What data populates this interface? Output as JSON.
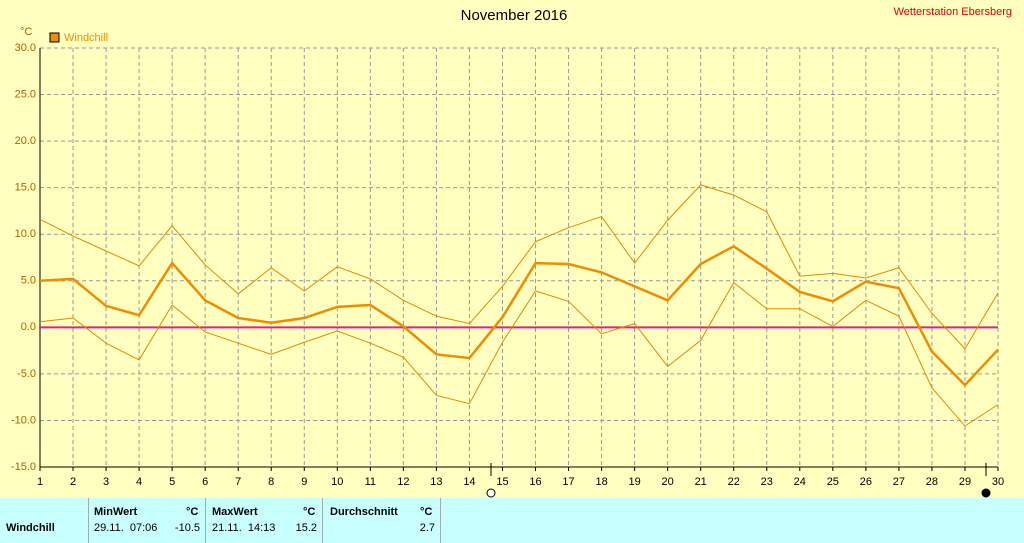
{
  "chart_data": {
    "type": "line",
    "title": "November 2016",
    "station": "Wetterstation Ebersberg",
    "y_unit": "°C",
    "x": [
      1,
      2,
      3,
      4,
      5,
      6,
      7,
      8,
      9,
      10,
      11,
      12,
      13,
      14,
      15,
      16,
      17,
      18,
      19,
      20,
      21,
      22,
      23,
      24,
      25,
      26,
      27,
      28,
      29,
      30
    ],
    "xlim": [
      1,
      30
    ],
    "xticks": [
      1,
      2,
      3,
      4,
      5,
      6,
      7,
      8,
      9,
      10,
      11,
      12,
      13,
      14,
      15,
      16,
      17,
      18,
      19,
      20,
      21,
      22,
      23,
      24,
      25,
      26,
      27,
      28,
      29,
      30
    ],
    "ylim": [
      -15,
      30
    ],
    "yticks": [
      {
        "value": -15,
        "label": "-15.0"
      },
      {
        "value": -10,
        "label": "-10.0"
      },
      {
        "value": -5,
        "label": "-5.0"
      },
      {
        "value": 0,
        "label": "0.0"
      },
      {
        "value": 5,
        "label": "5.0"
      },
      {
        "value": 10,
        "label": "10.0"
      },
      {
        "value": 15,
        "label": "15.0"
      },
      {
        "value": 20,
        "label": "20.0"
      },
      {
        "value": 25,
        "label": "25.0"
      },
      {
        "value": 30,
        "label": "30.0"
      }
    ],
    "grid": true,
    "reference_line": {
      "value": 0,
      "color": "#e0208f"
    },
    "series": [
      {
        "name": "Windchill",
        "color": "#f08c00",
        "values": [
          5.0,
          5.2,
          2.3,
          1.3,
          6.9,
          2.9,
          1.0,
          0.5,
          1.0,
          2.2,
          2.4,
          0.1,
          -2.9,
          -3.3,
          1.1,
          6.9,
          6.8,
          5.9,
          4.4,
          2.9,
          6.8,
          8.7,
          6.3,
          3.8,
          2.8,
          4.9,
          4.2,
          -2.6,
          -6.2,
          -2.4
        ]
      },
      {
        "color": "#e08a00",
        "values": [
          11.6,
          9.8,
          8.2,
          6.6,
          10.9,
          6.7,
          3.6,
          6.4,
          3.9,
          6.5,
          5.2,
          2.9,
          1.2,
          0.4,
          4.4,
          9.2,
          10.7,
          11.9,
          6.9,
          11.5,
          15.3,
          14.2,
          12.4,
          5.5,
          5.8,
          5.3,
          6.4,
          1.5,
          -2.3,
          3.7
        ]
      },
      {
        "color": "#e08a00",
        "values": [
          0.6,
          1.0,
          -1.7,
          -3.5,
          2.4,
          -0.5,
          -1.7,
          -2.9,
          -1.6,
          -0.4,
          -1.7,
          -3.2,
          -7.3,
          -8.2,
          -1.6,
          3.9,
          2.8,
          -0.7,
          0.4,
          -4.2,
          -1.4,
          4.8,
          2.0,
          2.0,
          0.1,
          2.9,
          1.2,
          -6.5,
          -10.6,
          -8.3
        ]
      }
    ]
  },
  "table": {
    "headers": [
      "MinWert",
      "°C",
      "MaxWert",
      "°C",
      "Durchschnitt",
      "°C"
    ],
    "rows": [
      [
        "Windchill",
        "29.11.  07:06",
        "-10.5",
        "21.11.  14:13",
        "15.2",
        "2.7"
      ]
    ]
  }
}
